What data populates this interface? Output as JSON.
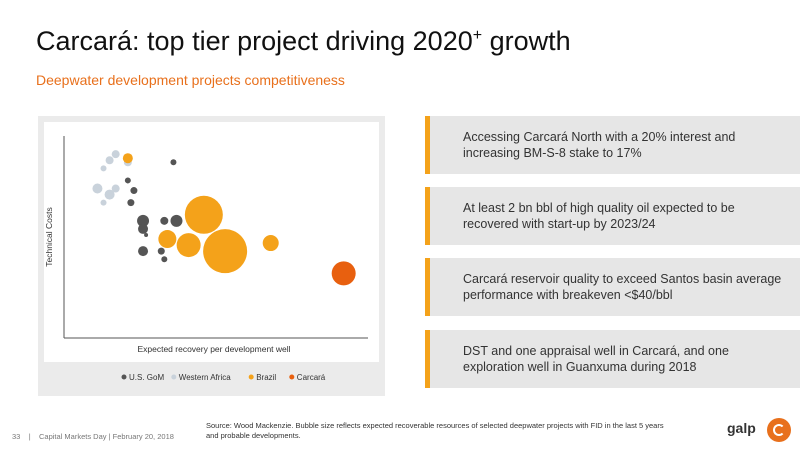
{
  "header": {
    "title": "Carcará: top tier project driving 2020",
    "title_sup": "+",
    "title_tail": " growth",
    "subtitle": "Deepwater development projects competitiveness"
  },
  "chart_data": {
    "type": "scatter",
    "title": "",
    "xlabel": "Expected recovery per development well",
    "ylabel": "Technical Costs",
    "xlim": [
      0,
      100
    ],
    "ylim": [
      0,
      100
    ],
    "grid": false,
    "legend_position": "bottom",
    "series": [
      {
        "name": "U.S. GoM",
        "color": "#555555",
        "points": [
          {
            "x": 36,
            "y": 87,
            "r": 3
          },
          {
            "x": 21,
            "y": 78,
            "r": 3
          },
          {
            "x": 23,
            "y": 73,
            "r": 3.5
          },
          {
            "x": 22,
            "y": 67,
            "r": 3.5
          },
          {
            "x": 26,
            "y": 58,
            "r": 6
          },
          {
            "x": 26,
            "y": 54,
            "r": 5
          },
          {
            "x": 33,
            "y": 58,
            "r": 4
          },
          {
            "x": 37,
            "y": 58,
            "r": 6
          },
          {
            "x": 27,
            "y": 51,
            "r": 2
          },
          {
            "x": 26,
            "y": 43,
            "r": 5
          },
          {
            "x": 33,
            "y": 39,
            "r": 3
          },
          {
            "x": 32,
            "y": 43,
            "r": 3.5
          }
        ]
      },
      {
        "name": "Western Africa",
        "color": "#c9d2db",
        "points": [
          {
            "x": 15,
            "y": 88,
            "r": 4
          },
          {
            "x": 17,
            "y": 91,
            "r": 4
          },
          {
            "x": 13,
            "y": 84,
            "r": 3
          },
          {
            "x": 21,
            "y": 87,
            "r": 4
          },
          {
            "x": 11,
            "y": 74,
            "r": 5
          },
          {
            "x": 15,
            "y": 71,
            "r": 5
          },
          {
            "x": 17,
            "y": 74,
            "r": 4
          },
          {
            "x": 13,
            "y": 67,
            "r": 3
          }
        ]
      },
      {
        "name": "Brazil",
        "color": "#f4a21a",
        "points": [
          {
            "x": 21,
            "y": 89,
            "r": 5
          },
          {
            "x": 46,
            "y": 61,
            "r": 19
          },
          {
            "x": 41,
            "y": 46,
            "r": 12
          },
          {
            "x": 34,
            "y": 49,
            "r": 9
          },
          {
            "x": 53,
            "y": 43,
            "r": 22
          },
          {
            "x": 68,
            "y": 47,
            "r": 8
          }
        ]
      },
      {
        "name": "Carcará",
        "color": "#e8600f",
        "points": [
          {
            "x": 92,
            "y": 32,
            "r": 12
          }
        ]
      }
    ]
  },
  "cards": [
    {
      "text": "Accessing Carcará North with a 20% interest and increasing BM-S-8 stake to 17%"
    },
    {
      "text": "At least 2 bn bbl of high quality oil expected to be recovered with start-up by 2023/24"
    },
    {
      "text": "Carcará reservoir quality to exceed Santos basin average performance with breakeven <$40/bbl"
    },
    {
      "text": "DST and one appraisal well in Carcará, and one exploration well in Guanxuma during 2018"
    }
  ],
  "footer": {
    "page": "33",
    "separator": "|",
    "event": "Capital Markets Day | February 20, 2018",
    "source": "Source: Wood Mackenzie. Bubble size reflects expected recoverable resources of selected deepwater projects with FID in the last 5 years and probable developments.",
    "logo_text": "galp"
  }
}
